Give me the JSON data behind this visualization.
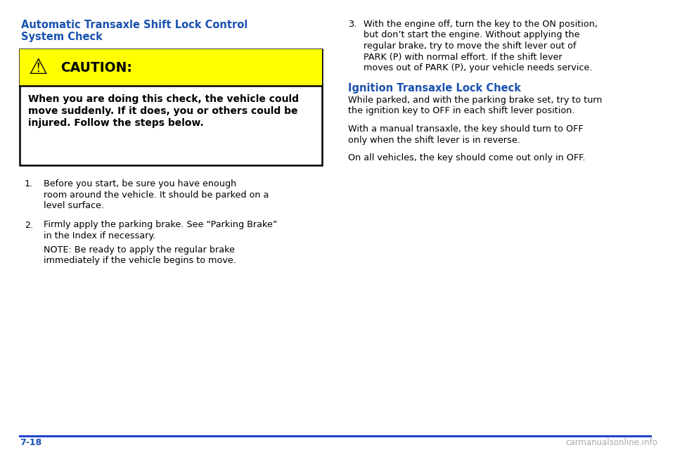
{
  "bg_color": "#ffffff",
  "blue_color": "#1a52b0",
  "black_color": "#000000",
  "yellow_color": "#ffff00",
  "gray_color": "#aaaaaa",
  "footer_line_color": "#2244cc",
  "fig_width": 9.6,
  "fig_height": 6.4,
  "dpi": 100,
  "left_heading_line1": "Automatic Transaxle Shift Lock Control",
  "left_heading_line2": "System Check",
  "caution_header": "  CAUTION:",
  "caution_body_line1": "When you are doing this check, the vehicle could",
  "caution_body_line2": "move suddenly. If it does, you or others could be",
  "caution_body_line3": "injured. Follow the steps below.",
  "item1_num": "1.",
  "item1_text_line1": "Before you start, be sure you have enough",
  "item1_text_line2": "room around the vehicle. It should be parked on a",
  "item1_text_line3": "level surface.",
  "item2_num": "2.",
  "item2_text_line1": "Firmly apply the parking brake. See “Parking Brake”",
  "item2_text_line2": "in the Index if necessary.",
  "note_line1": "NOTE: Be ready to apply the regular brake",
  "note_line2": "immediately if the vehicle begins to move.",
  "item3_num": "3.",
  "item3_line1": "With the engine off, turn the key to the ON position,",
  "item3_line2": "but don’t start the engine. Without applying the",
  "item3_line3": "regular brake, try to move the shift lever out of",
  "item3_line4": "PARK (P) with normal effort. If the shift lever",
  "item3_line5": "moves out of PARK (P), your vehicle needs service.",
  "right_heading": "Ignition Transaxle Lock Check",
  "right_p1_line1": "While parked, and with the parking brake set, try to turn",
  "right_p1_line2": "the ignition key to OFF in each shift lever position.",
  "right_p2_line1": "With a manual transaxle, the key should turn to OFF",
  "right_p2_line2": "only when the shift lever is in reverse.",
  "right_p3": "On all vehicles, the key should come out only in OFF.",
  "footer_page": "7-18",
  "footer_site": "carmanualsonline.info"
}
